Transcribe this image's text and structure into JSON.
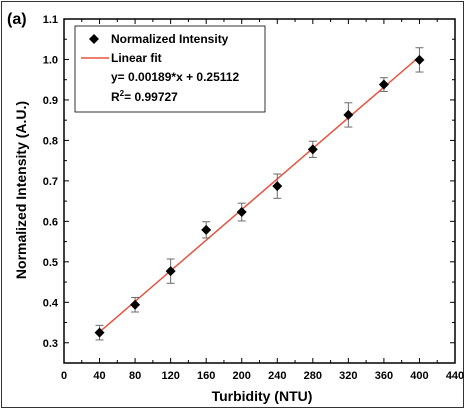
{
  "panel_tag": "(a)",
  "chart_data": {
    "type": "scatter",
    "title": "",
    "xlabel": "Turbidity (NTU)",
    "ylabel": "Normalized Intensity (A.U.)",
    "xlim": [
      0,
      440
    ],
    "ylim": [
      0.25,
      1.1
    ],
    "x_ticks": [
      0,
      40,
      80,
      120,
      160,
      200,
      240,
      280,
      320,
      360,
      400,
      440
    ],
    "y_ticks": [
      0.3,
      0.4,
      0.5,
      0.6,
      0.7,
      0.8,
      0.9,
      1.0,
      1.1
    ],
    "grid": false,
    "legend_position": "top-left",
    "series": [
      {
        "name": "Normalized Intensity",
        "marker": "diamond",
        "color": "#000000",
        "points": [
          {
            "x": 40,
            "y": 0.325,
            "err": 0.018
          },
          {
            "x": 80,
            "y": 0.394,
            "err": 0.018
          },
          {
            "x": 120,
            "y": 0.477,
            "err": 0.03
          },
          {
            "x": 160,
            "y": 0.579,
            "err": 0.02
          },
          {
            "x": 200,
            "y": 0.623,
            "err": 0.022
          },
          {
            "x": 240,
            "y": 0.687,
            "err": 0.03
          },
          {
            "x": 280,
            "y": 0.778,
            "err": 0.02
          },
          {
            "x": 320,
            "y": 0.863,
            "err": 0.03
          },
          {
            "x": 360,
            "y": 0.938,
            "err": 0.017
          },
          {
            "x": 400,
            "y": 0.999,
            "err": 0.03
          }
        ]
      },
      {
        "name": "Linear fit",
        "type": "line",
        "color": "#e8533f",
        "slope": 0.00189,
        "intercept": 0.25112,
        "x_range": [
          40,
          400
        ]
      }
    ],
    "annotations": {
      "equation": "y= 0.00189*x + 0.25112",
      "r2_label": "R",
      "r2_sup": "2",
      "r2_value": "= 0.99727"
    }
  }
}
